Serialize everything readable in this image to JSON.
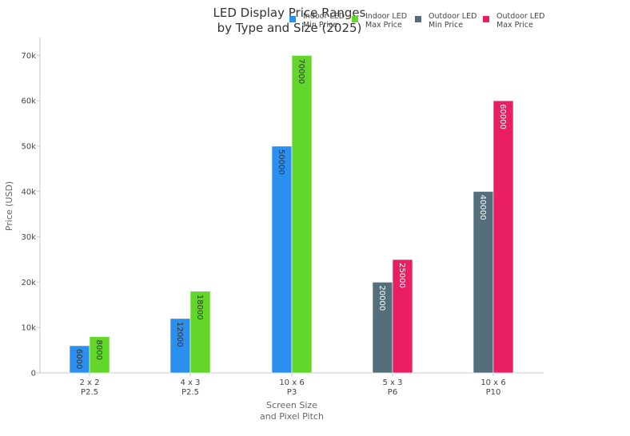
{
  "chart_data": {
    "type": "bar",
    "title_lines": [
      "LED Display Price Ranges",
      "by Type and Size (2025)"
    ],
    "xlabel_lines": [
      "Screen Size",
      "and Pixel Pitch"
    ],
    "ylabel": "Price (USD)",
    "categories": [
      [
        "2 x 2",
        "P2.5"
      ],
      [
        "4 x 3",
        "P2.5"
      ],
      [
        "10 x 6",
        "P3"
      ],
      [
        "5 x 3",
        "P6"
      ],
      [
        "10 x 6",
        "P10"
      ]
    ],
    "ylim": [
      0,
      73000
    ],
    "yticks": [
      {
        "value": 0,
        "label": "0"
      },
      {
        "value": 10000,
        "label": "10k"
      },
      {
        "value": 20000,
        "label": "20k"
      },
      {
        "value": 30000,
        "label": "30k"
      },
      {
        "value": 40000,
        "label": "40k"
      },
      {
        "value": 50000,
        "label": "50k"
      },
      {
        "value": 60000,
        "label": "60k"
      },
      {
        "value": 70000,
        "label": "70k"
      }
    ],
    "grid": false,
    "legend_position": "top-right",
    "series": [
      {
        "name_lines": [
          "Indoor LED",
          "Min Price"
        ],
        "color": "#2b8ff0",
        "label_color": "#333333",
        "values": [
          6000,
          12000,
          50000,
          null,
          null
        ]
      },
      {
        "name_lines": [
          "Indoor LED",
          "Max Price"
        ],
        "color": "#62d629",
        "label_color": "#333333",
        "values": [
          8000,
          18000,
          70000,
          null,
          null
        ]
      },
      {
        "name_lines": [
          "Outdoor LED",
          "Min Price"
        ],
        "color": "#546e7a",
        "label_color": "#ffffff",
        "values": [
          null,
          null,
          null,
          20000,
          40000
        ]
      },
      {
        "name_lines": [
          "Outdoor LED",
          "Max Price"
        ],
        "color": "#e91e63",
        "label_color": "#ffffff",
        "values": [
          null,
          null,
          null,
          25000,
          60000
        ]
      }
    ]
  }
}
